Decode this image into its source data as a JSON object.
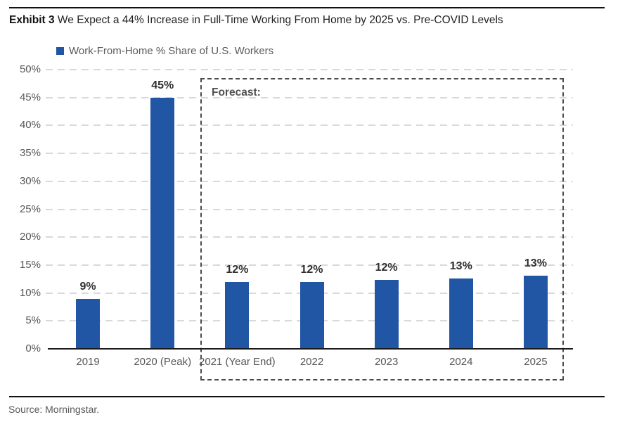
{
  "exhibit": {
    "label": "Exhibit 3",
    "title": "We Expect a 44% Increase in Full-Time Working From Home by 2025 vs. Pre-COVID Levels"
  },
  "legend": {
    "label": "Work-From-Home % Share of U.S. Workers"
  },
  "source": {
    "text": "Source: Morningstar."
  },
  "colors": {
    "bar": "#2156a4",
    "grid": "#d9d9d9",
    "axis_text": "#565759",
    "value_label": "#2f2f2f",
    "forecast_border": "#4a4a4a",
    "baseline": "#1a1a1a"
  },
  "chart_data": {
    "type": "bar",
    "title": "Work-From-Home % Share of U.S. Workers",
    "categories": [
      "2019",
      "2020 (Peak)",
      "2021 (Year End)",
      "2022",
      "2023",
      "2024",
      "2025"
    ],
    "values": [
      9,
      45,
      12,
      12,
      12,
      13,
      13
    ],
    "value_labels": [
      "9%",
      "45%",
      "12%",
      "12%",
      "12%",
      "13%",
      "13%"
    ],
    "bar_heights_pct": [
      9,
      45,
      12,
      12,
      12.4,
      12.6,
      13.1
    ],
    "xlabel": "",
    "ylabel": "",
    "ylim": [
      0,
      50
    ],
    "ytick_step": 5,
    "yticks": [
      "0%",
      "5%",
      "10%",
      "15%",
      "20%",
      "25%",
      "30%",
      "35%",
      "40%",
      "45%",
      "50%"
    ],
    "grid": "horizontal-dashed",
    "legend_position": "top-left",
    "bar_color": "#2156a4",
    "forecast_region": {
      "label": "Forecast:",
      "categories": [
        "2021 (Year End)",
        "2022",
        "2023",
        "2024",
        "2025"
      ]
    }
  }
}
